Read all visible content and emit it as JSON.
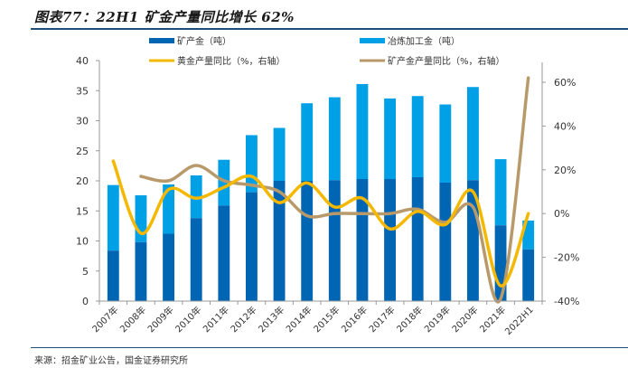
{
  "title": "图表77：22H1 矿金产量同比增长 62%",
  "source": "来源：招金矿业公告，国金证券研究所",
  "colors": {
    "mine_bar": "#0066b3",
    "smelt_bar": "#00a0e6",
    "gold_yoy_line": "#f5b800",
    "mine_yoy_line": "#b8996a",
    "axis": "#999999",
    "rule": "#1f4e79"
  },
  "chart_data": {
    "type": "bar",
    "title": "22H1 矿金产量同比增长 62%",
    "categories": [
      "2007年",
      "2008年",
      "2009年",
      "2010年",
      "2011年",
      "2012年",
      "2013年",
      "2014年",
      "2015年",
      "2016年",
      "2017年",
      "2018年",
      "2019年",
      "2020年",
      "2021年",
      "2022H1"
    ],
    "series": [
      {
        "name": "矿产金（吨）",
        "type": "bar",
        "stack": "total",
        "axis": "left",
        "values": [
          8.4,
          9.8,
          11.2,
          13.8,
          15.9,
          18.1,
          20.0,
          20.0,
          20.1,
          20.3,
          20.3,
          20.6,
          19.7,
          20.1,
          12.6,
          8.6
        ]
      },
      {
        "name": "冶炼加工金（吨）",
        "type": "bar",
        "stack": "total",
        "axis": "left",
        "values": [
          10.9,
          7.8,
          8.2,
          7.1,
          7.6,
          9.5,
          8.8,
          12.9,
          13.8,
          15.8,
          13.4,
          13.5,
          13.0,
          15.5,
          11.0,
          4.8
        ]
      },
      {
        "name": "黄金产量同比（%，右轴）",
        "type": "line",
        "axis": "right",
        "values": [
          24,
          -9,
          11,
          7,
          12,
          17,
          5,
          14,
          3,
          7,
          -7,
          1,
          -5,
          10,
          -33,
          0
        ]
      },
      {
        "name": "矿产金产量同比（%，右轴）",
        "type": "line",
        "axis": "right",
        "values": [
          null,
          17,
          15,
          22,
          15,
          13,
          10,
          -1,
          0,
          0,
          0,
          2,
          -4,
          3,
          -39,
          62
        ]
      }
    ],
    "left_axis": {
      "ylim": [
        0,
        40
      ],
      "ticks": [
        "0",
        "5",
        "10",
        "15",
        "20",
        "25",
        "30",
        "35",
        "40"
      ]
    },
    "right_axis": {
      "ylim": [
        -40,
        70
      ],
      "ticks": [
        "-40%",
        "-20%",
        "0%",
        "20%",
        "40%",
        "60%"
      ],
      "tick_values": [
        -40,
        -20,
        0,
        20,
        40,
        60
      ]
    },
    "legend": {
      "placement": "top",
      "items": [
        {
          "label": "矿产金（吨）",
          "kind": "bar"
        },
        {
          "label": "冶炼加工金（吨）",
          "kind": "bar"
        },
        {
          "label": "黄金产量同比（%，右轴）",
          "kind": "line"
        },
        {
          "label": "矿产金产量同比（%，右轴）",
          "kind": "line"
        }
      ]
    },
    "grid": false,
    "xlabel": "",
    "ylabel": ""
  }
}
